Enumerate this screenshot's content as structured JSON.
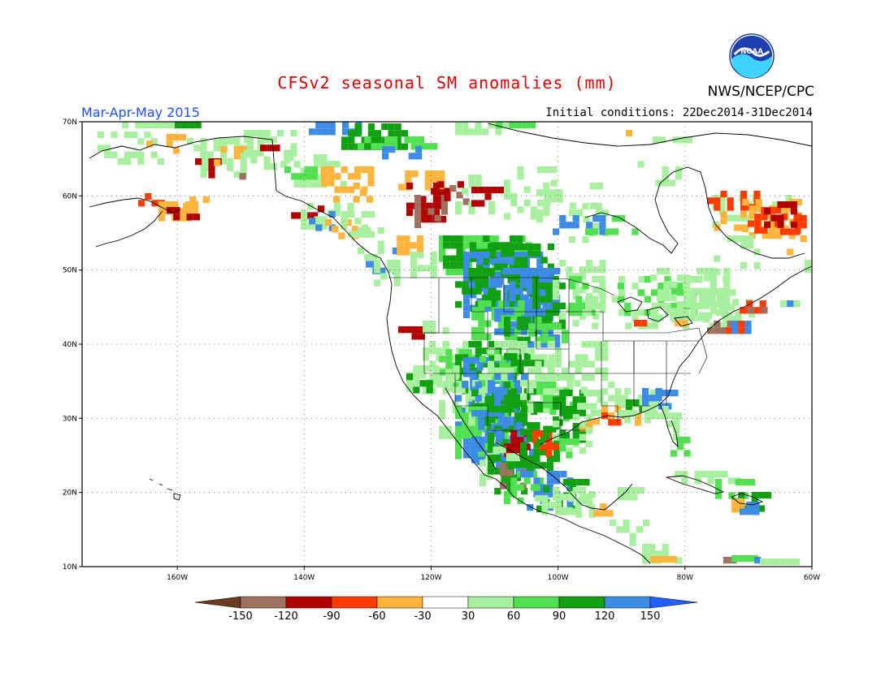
{
  "header": {
    "title": "CFSv2 seasonal SM anomalies (mm)",
    "season": "Mar-Apr-May 2015",
    "initial_conditions": "Initial conditions: 22Dec2014-31Dec2014",
    "organization": "NWS/NCEP/CPC",
    "logo_text": "NOAA"
  },
  "map": {
    "lon_range": [
      -175,
      -60
    ],
    "lat_range": [
      10,
      70
    ],
    "lon_ticks": [
      {
        "value": -160,
        "label": "160W"
      },
      {
        "value": -140,
        "label": "140W"
      },
      {
        "value": -120,
        "label": "120W"
      },
      {
        "value": -100,
        "label": "100W"
      },
      {
        "value": -80,
        "label": "80W"
      },
      {
        "value": -60,
        "label": "60W"
      }
    ],
    "lat_ticks": [
      {
        "value": 10,
        "label": "10N"
      },
      {
        "value": 20,
        "label": "20N"
      },
      {
        "value": 30,
        "label": "30N"
      },
      {
        "value": 40,
        "label": "40N"
      },
      {
        "value": 50,
        "label": "50N"
      },
      {
        "value": 60,
        "label": "60N"
      },
      {
        "value": 70,
        "label": "70N"
      }
    ],
    "grid": "dotted"
  },
  "colorbar": {
    "colors": [
      "#6b3a1f",
      "#a07060",
      "#b00000",
      "#ff3c00",
      "#ffb43c",
      "#ffffff",
      "#a8f0a0",
      "#50e050",
      "#10a010",
      "#3c8ce6",
      "#2060ff"
    ],
    "labels": [
      "-150",
      "-120",
      "-90",
      "-60",
      "-30",
      "30",
      "60",
      "90",
      "120",
      "150"
    ]
  },
  "anomaly_colors": {
    "dark_brown": "#6b3a1f",
    "brown": "#a07060",
    "dark_red": "#b00000",
    "red": "#ff3c00",
    "orange": "#ffb43c",
    "light_green": "#a8f0a0",
    "green": "#50e050",
    "dark_green": "#10a010",
    "blue": "#3c8ce6"
  }
}
